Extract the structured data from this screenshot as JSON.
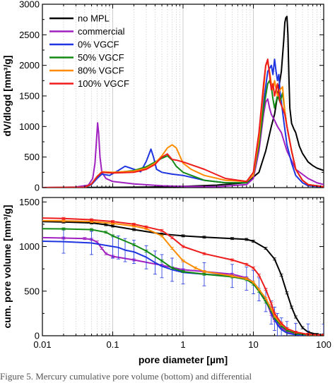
{
  "caption": "Figure 5. Mercury cumulative pore volume (bottom) and differential",
  "chart_data": [
    {
      "type": "line",
      "ylabel": "dV/dlogd [mm³/g]",
      "xscale": "log",
      "xlim": [
        0.01,
        100
      ],
      "ylim": [
        0,
        3000
      ],
      "yticks": [
        "0",
        "500",
        "1000",
        "1500",
        "2000",
        "2500",
        "3000"
      ],
      "grid": "vertical dotted",
      "legend_position": "top-left",
      "series": [
        {
          "name": "no MPL",
          "color": "#000000",
          "x": [
            0.01,
            0.1,
            0.4,
            1,
            3,
            8,
            12,
            15,
            18,
            20,
            22,
            25,
            27,
            28,
            29,
            30,
            31,
            32,
            33,
            35,
            38,
            40,
            45,
            50,
            60,
            70,
            80,
            100
          ],
          "y": [
            0,
            5,
            10,
            20,
            40,
            80,
            250,
            600,
            1000,
            1200,
            1500,
            1900,
            2400,
            2700,
            2780,
            2800,
            2500,
            1800,
            1300,
            1050,
            950,
            900,
            680,
            560,
            420,
            360,
            320,
            280
          ]
        },
        {
          "name": "commercial",
          "color": "#a020c0",
          "x": [
            0.01,
            0.03,
            0.045,
            0.052,
            0.056,
            0.059,
            0.061,
            0.063,
            0.066,
            0.07,
            0.08,
            0.1,
            0.2,
            0.5,
            1,
            3,
            8,
            10,
            12,
            14,
            15,
            16,
            17,
            18,
            19,
            20,
            22,
            25,
            30,
            40,
            60,
            80,
            100
          ],
          "y": [
            0,
            10,
            40,
            150,
            400,
            800,
            1060,
            900,
            500,
            250,
            150,
            100,
            60,
            30,
            20,
            15,
            50,
            150,
            600,
            1200,
            1400,
            1450,
            1300,
            1200,
            1150,
            1100,
            1000,
            900,
            600,
            300,
            150,
            80,
            50
          ]
        },
        {
          "name": "0% VGCF",
          "color": "#1f35e0",
          "x": [
            0.01,
            0.04,
            0.05,
            0.06,
            0.07,
            0.09,
            0.12,
            0.15,
            0.2,
            0.25,
            0.3,
            0.35,
            0.38,
            0.42,
            0.5,
            0.7,
            1,
            2,
            4,
            8,
            10,
            12,
            14,
            16,
            18,
            19,
            20,
            21,
            22,
            23,
            24,
            25,
            27,
            30,
            35,
            40,
            50,
            60,
            100
          ],
          "y": [
            0,
            5,
            50,
            150,
            220,
            200,
            280,
            350,
            300,
            260,
            430,
            630,
            500,
            300,
            250,
            220,
            200,
            120,
            80,
            80,
            200,
            700,
            1400,
            1900,
            2000,
            1850,
            2100,
            1900,
            1750,
            1850,
            1550,
            1400,
            1100,
            700,
            400,
            200,
            80,
            30,
            10
          ]
        },
        {
          "name": "50% VGCF",
          "color": "#138a13",
          "x": [
            0.01,
            0.04,
            0.05,
            0.06,
            0.07,
            0.1,
            0.2,
            0.3,
            0.4,
            0.5,
            0.6,
            0.7,
            0.8,
            1,
            2,
            4,
            8,
            10,
            12,
            14,
            16,
            17,
            18,
            19,
            20,
            22,
            24,
            26,
            28,
            30,
            35,
            40,
            50,
            60,
            100
          ],
          "y": [
            0,
            5,
            60,
            180,
            250,
            240,
            280,
            340,
            420,
            480,
            520,
            450,
            350,
            250,
            120,
            80,
            80,
            200,
            700,
            1300,
            1700,
            1750,
            1650,
            1450,
            1300,
            1500,
            1400,
            1550,
            1250,
            1000,
            600,
            300,
            120,
            50,
            15
          ]
        },
        {
          "name": "80% VGCF",
          "color": "#ff8c00",
          "x": [
            0.01,
            0.04,
            0.05,
            0.06,
            0.07,
            0.1,
            0.2,
            0.3,
            0.4,
            0.5,
            0.6,
            0.7,
            0.8,
            0.9,
            1,
            1.3,
            2,
            4,
            8,
            10,
            12,
            14,
            15,
            16,
            17,
            18,
            19,
            20,
            22,
            24,
            26,
            28,
            30,
            35,
            40,
            50,
            60,
            100
          ],
          "y": [
            0,
            5,
            60,
            180,
            260,
            250,
            270,
            320,
            400,
            520,
            650,
            700,
            650,
            520,
            400,
            300,
            200,
            120,
            100,
            200,
            800,
            1600,
            2000,
            2050,
            1900,
            1700,
            1600,
            1750,
            1500,
            1600,
            1650,
            1250,
            1000,
            600,
            300,
            120,
            50,
            15
          ]
        },
        {
          "name": "100% VGCF",
          "color": "#ee1c1c",
          "x": [
            0.01,
            0.04,
            0.05,
            0.06,
            0.07,
            0.1,
            0.2,
            0.3,
            0.4,
            0.5,
            0.6,
            0.7,
            0.8,
            1,
            2,
            4,
            8,
            10,
            12,
            14,
            15,
            16,
            17,
            18,
            19,
            20,
            22,
            24,
            26,
            28,
            30,
            35,
            40,
            50,
            60,
            100
          ],
          "y": [
            0,
            5,
            60,
            180,
            250,
            240,
            250,
            300,
            380,
            500,
            550,
            460,
            450,
            420,
            300,
            150,
            100,
            250,
            900,
            1700,
            2000,
            2100,
            1850,
            1600,
            1700,
            1500,
            1700,
            1400,
            1300,
            1200,
            1000,
            600,
            300,
            120,
            50,
            15
          ]
        }
      ]
    },
    {
      "type": "line",
      "xlabel": "pore diameter [µm]",
      "ylabel": "cum. pore volume [mm³/g]",
      "xscale": "log",
      "xlim": [
        0.01,
        100
      ],
      "ylim": [
        0,
        1550
      ],
      "xticks": [
        "0.01",
        "0.1",
        "1",
        "10",
        "100"
      ],
      "yticks": [
        "0",
        "500",
        "1000",
        "1500"
      ],
      "grid": "vertical dotted",
      "error_bars": true,
      "series": [
        {
          "name": "no MPL",
          "color": "#000000",
          "err": 12,
          "x": [
            0.01,
            0.02,
            0.05,
            0.08,
            0.1,
            0.2,
            0.5,
            1,
            2,
            5,
            8,
            10,
            15,
            20,
            25,
            30,
            35,
            40,
            50,
            60,
            80,
            100
          ],
          "y": [
            1280,
            1275,
            1265,
            1245,
            1230,
            1190,
            1140,
            1120,
            1105,
            1090,
            1080,
            1060,
            980,
            860,
            680,
            480,
            320,
            210,
            90,
            40,
            15,
            10
          ]
        },
        {
          "name": "commercial",
          "color": "#a020c0",
          "err": 12,
          "x": [
            0.01,
            0.02,
            0.04,
            0.05,
            0.06,
            0.07,
            0.08,
            0.1,
            0.2,
            0.5,
            1,
            2,
            5,
            8,
            10,
            12,
            15,
            18,
            20,
            25,
            30,
            40,
            60,
            100
          ],
          "y": [
            1100,
            1095,
            1090,
            1080,
            1050,
            980,
            920,
            890,
            850,
            790,
            740,
            720,
            690,
            650,
            600,
            520,
            400,
            240,
            170,
            90,
            50,
            20,
            8,
            2
          ]
        },
        {
          "name": "0% VGCF",
          "color": "#1f35e0",
          "err": 130,
          "x": [
            0.01,
            0.02,
            0.05,
            0.1,
            0.12,
            0.15,
            0.2,
            0.3,
            0.4,
            0.5,
            0.7,
            1,
            2,
            5,
            8,
            10,
            12,
            15,
            18,
            20,
            22,
            25,
            30,
            40,
            60,
            100
          ],
          "y": [
            1060,
            1055,
            1040,
            1000,
            990,
            960,
            940,
            880,
            820,
            780,
            740,
            710,
            690,
            670,
            640,
            600,
            520,
            400,
            260,
            190,
            120,
            70,
            30,
            10,
            3,
            1
          ]
        },
        {
          "name": "50% VGCF",
          "color": "#138a13",
          "err": 12,
          "x": [
            0.01,
            0.02,
            0.05,
            0.08,
            0.1,
            0.2,
            0.3,
            0.5,
            0.7,
            1,
            2,
            5,
            8,
            10,
            12,
            15,
            18,
            20,
            25,
            30,
            40,
            60,
            100
          ],
          "y": [
            1200,
            1198,
            1190,
            1160,
            1120,
            1020,
            950,
            840,
            760,
            720,
            690,
            660,
            630,
            580,
            500,
            380,
            280,
            200,
            110,
            60,
            25,
            8,
            2
          ]
        },
        {
          "name": "80% VGCF",
          "color": "#ff8c00",
          "err": 12,
          "x": [
            0.01,
            0.02,
            0.05,
            0.1,
            0.2,
            0.3,
            0.5,
            0.7,
            1,
            1.5,
            2,
            5,
            8,
            10,
            12,
            15,
            18,
            20,
            25,
            30,
            40,
            60,
            100
          ],
          "y": [
            1290,
            1288,
            1280,
            1260,
            1230,
            1200,
            1120,
            980,
            840,
            760,
            720,
            670,
            640,
            600,
            520,
            420,
            300,
            220,
            130,
            80,
            40,
            15,
            5
          ]
        },
        {
          "name": "100% VGCF",
          "color": "#ee1c1c",
          "err": 12,
          "x": [
            0.01,
            0.02,
            0.05,
            0.1,
            0.2,
            0.3,
            0.5,
            0.7,
            1,
            2,
            5,
            8,
            10,
            12,
            15,
            18,
            20,
            25,
            30,
            40,
            60,
            100
          ],
          "y": [
            1320,
            1315,
            1300,
            1280,
            1250,
            1220,
            1180,
            1100,
            1000,
            920,
            850,
            800,
            760,
            680,
            520,
            360,
            250,
            140,
            80,
            40,
            15,
            5
          ]
        }
      ]
    }
  ]
}
